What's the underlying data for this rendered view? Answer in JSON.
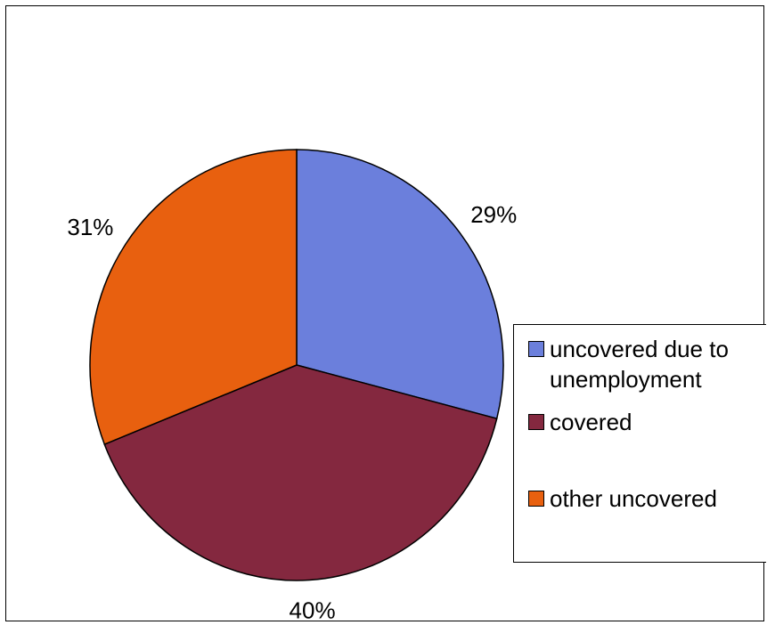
{
  "chart_data": {
    "type": "pie",
    "title": "",
    "slices": [
      {
        "label": "uncovered due to unemployment",
        "value": 29,
        "display": "29%",
        "color": "#6b7fdc"
      },
      {
        "label": "covered",
        "value": 40,
        "display": "40%",
        "color": "#84283f"
      },
      {
        "label": "other uncovered",
        "value": 31,
        "display": "31%",
        "color": "#e8600f"
      }
    ],
    "start_angle_deg": 0,
    "direction": "clockwise",
    "legend_position": "right"
  },
  "legend": {
    "items": [
      {
        "label": "uncovered due to\nunemployment",
        "color": "#6b7fdc"
      },
      {
        "label": "covered",
        "color": "#84283f"
      },
      {
        "label": "other uncovered",
        "color": "#e8600f"
      }
    ]
  }
}
